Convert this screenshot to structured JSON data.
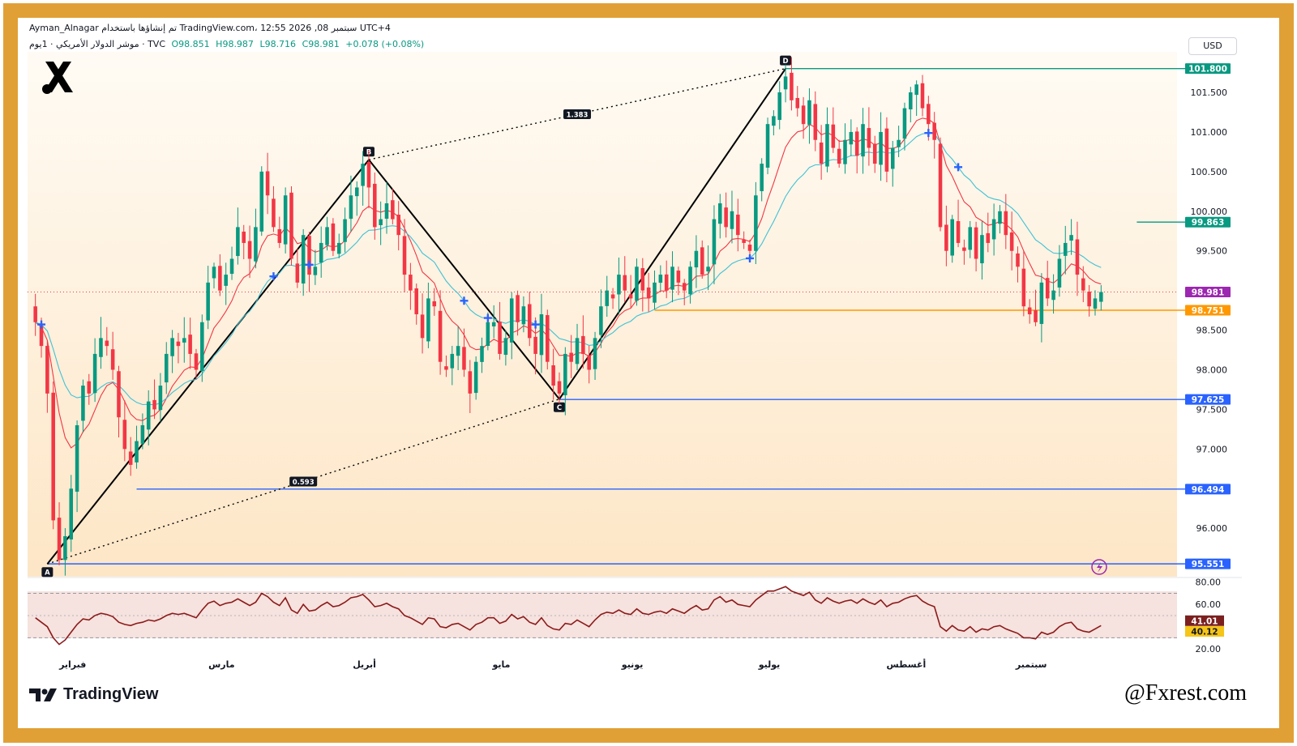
{
  "header": {
    "title_line": "Ayman_Alnagar تم إنشاؤها باستخدام TradingView.com، 12:55 2026 ,08 سبتمبر UTC+4",
    "symbol_line": "موشر الدولار الأمريكي · 1يوم · TVC",
    "open": "O98.851",
    "high": "H98.987",
    "low": "L98.716",
    "close": "C98.981",
    "change": "+0.078 (+0.08%)",
    "currency_button": "USD"
  },
  "footer": {
    "brand": "TradingView",
    "watermark": "@Fxrest.com"
  },
  "colors": {
    "frame": "#E1A036",
    "up": "#089981",
    "down": "#F23645",
    "ema_fast": "#F23645",
    "ema_slow": "#3FC1D6",
    "level_blue": "#2962FF",
    "level_green": "#089981",
    "level_orange": "#FF9800",
    "rsi_line": "#8B1A1A"
  },
  "chart_data": [
    {
      "type": "candlestick",
      "symbol": "DXY",
      "timeframe": "1D",
      "ylim": [
        95.45,
        101.95
      ],
      "y_ticks": [
        "101.500",
        "101.000",
        "100.500",
        "100.000",
        "99.500",
        "98.500",
        "98.000",
        "97.500",
        "97.000",
        "96.000"
      ],
      "x_ticks": [
        "فبراير",
        "مارس",
        "أبريل",
        "مايو",
        "يونيو",
        "يوليو",
        "أغسطس",
        "سبتمبر"
      ],
      "price_labels": [
        {
          "value": "101.800",
          "role": "level",
          "color": "#089981"
        },
        {
          "value": "99.863",
          "role": "level",
          "color": "#089981"
        },
        {
          "value": "98.981",
          "role": "last",
          "color": "#9C27B0"
        },
        {
          "value": "98.751",
          "role": "level",
          "color": "#FF9800"
        },
        {
          "value": "97.625",
          "role": "level",
          "color": "#2962FF"
        },
        {
          "value": "96.494",
          "role": "level",
          "color": "#2962FF"
        },
        {
          "value": "95.551",
          "role": "level",
          "color": "#2962FF"
        }
      ],
      "pattern_points": [
        {
          "label": "A",
          "date_index": 2,
          "price": 95.55
        },
        {
          "label": "B",
          "date_index": 56,
          "price": 100.65
        },
        {
          "label": "C",
          "date_index": 88,
          "price": 97.63
        },
        {
          "label": "D",
          "date_index": 126,
          "price": 101.8
        }
      ],
      "pattern_ratios": [
        "1.383",
        "0.593"
      ],
      "series": [
        {
          "name": "candles",
          "closes": [
            98.6,
            98.3,
            97.7,
            96.1,
            95.6,
            95.9,
            96.5,
            97.3,
            97.8,
            97.7,
            98.2,
            98.4,
            98.3,
            98.0,
            97.4,
            97.0,
            96.8,
            97.1,
            97.3,
            97.6,
            97.5,
            97.8,
            98.2,
            98.4,
            98.3,
            98.4,
            98.2,
            98.0,
            98.6,
            99.1,
            99.3,
            99.0,
            99.2,
            99.4,
            99.8,
            99.6,
            99.4,
            99.8,
            100.5,
            100.2,
            99.8,
            99.6,
            100.2,
            99.4,
            99.1,
            99.7,
            99.2,
            99.3,
            99.6,
            99.8,
            99.5,
            99.6,
            99.9,
            100.2,
            100.3,
            100.6,
            100.3,
            99.8,
            99.9,
            100.1,
            99.9,
            99.7,
            99.2,
            99.0,
            98.7,
            98.4,
            98.9,
            98.8,
            98.1,
            98.0,
            98.2,
            98.3,
            98.0,
            97.7,
            98.1,
            98.3,
            98.6,
            98.6,
            98.2,
            98.4,
            98.9,
            98.6,
            98.8,
            98.4,
            98.2,
            98.7,
            98.1,
            97.8,
            97.7,
            98.2,
            98.1,
            98.4,
            98.2,
            98.0,
            98.4,
            98.8,
            99.0,
            98.9,
            99.2,
            99.0,
            98.9,
            99.3,
            99.0,
            98.9,
            99.1,
            99.2,
            99.0,
            99.3,
            99.1,
            99.0,
            99.3,
            99.5,
            99.2,
            99.3,
            99.9,
            100.1,
            99.8,
            100.0,
            99.7,
            99.6,
            99.5,
            100.2,
            100.6,
            101.1,
            101.2,
            101.5,
            101.7,
            101.4,
            101.3,
            101.1,
            101.4,
            100.9,
            100.6,
            101.1,
            100.8,
            100.6,
            100.9,
            101.0,
            100.7,
            101.1,
            100.8,
            100.6,
            101.0,
            100.5,
            100.8,
            100.9,
            101.3,
            101.5,
            101.6,
            101.3,
            101.1,
            100.9,
            99.8,
            99.5,
            99.9,
            99.6,
            99.5,
            99.8,
            99.4,
            99.7,
            99.6,
            99.9,
            100.0,
            99.7,
            99.5,
            99.3,
            98.8,
            98.7,
            98.6,
            99.1,
            98.9,
            99.0,
            99.4,
            99.6,
            99.7,
            99.2,
            99.0,
            98.8,
            98.9,
            98.981
          ]
        },
        {
          "name": "ema_fast"
        },
        {
          "name": "ema_slow"
        }
      ]
    },
    {
      "type": "line",
      "indicator": "RSI",
      "ylim": [
        15,
        82
      ],
      "y_ticks": [
        "80.00",
        "60.00",
        "20.00"
      ],
      "bands": [
        70,
        30
      ],
      "value_labels": [
        "41.01",
        "40.12"
      ],
      "series": [
        {
          "name": "rsi",
          "values": [
            48,
            44,
            40,
            30,
            24,
            28,
            35,
            42,
            47,
            46,
            50,
            52,
            51,
            49,
            44,
            42,
            41,
            43,
            44,
            46,
            45,
            47,
            50,
            52,
            51,
            52,
            50,
            48,
            55,
            61,
            63,
            59,
            61,
            62,
            65,
            62,
            59,
            62,
            70,
            67,
            62,
            59,
            66,
            55,
            52,
            60,
            54,
            55,
            59,
            62,
            58,
            59,
            62,
            66,
            67,
            69,
            64,
            58,
            59,
            61,
            58,
            56,
            50,
            48,
            45,
            42,
            48,
            47,
            40,
            39,
            42,
            43,
            40,
            37,
            42,
            44,
            48,
            48,
            43,
            45,
            51,
            47,
            49,
            44,
            42,
            48,
            41,
            38,
            37,
            43,
            42,
            46,
            43,
            40,
            46,
            51,
            53,
            52,
            55,
            52,
            51,
            56,
            52,
            51,
            53,
            54,
            52,
            56,
            54,
            52,
            56,
            59,
            55,
            56,
            64,
            67,
            62,
            64,
            60,
            59,
            58,
            64,
            68,
            72,
            72,
            74,
            76,
            72,
            70,
            68,
            71,
            64,
            61,
            66,
            63,
            61,
            63,
            64,
            61,
            65,
            62,
            60,
            64,
            58,
            61,
            62,
            65,
            67,
            68,
            63,
            60,
            58,
            40,
            36,
            41,
            37,
            36,
            40,
            35,
            38,
            37,
            40,
            41,
            38,
            36,
            34,
            30,
            30,
            29,
            35,
            33,
            35,
            40,
            43,
            44,
            38,
            36,
            35,
            38,
            41
          ]
        }
      ]
    }
  ]
}
